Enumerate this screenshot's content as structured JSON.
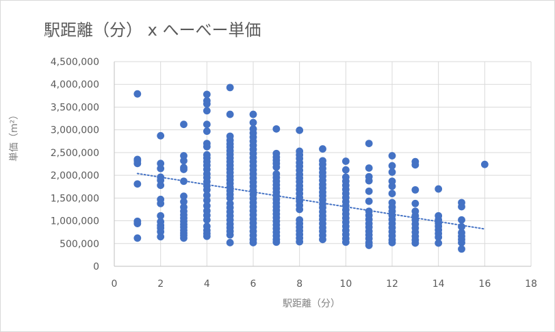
{
  "chart_data": {
    "type": "scatter",
    "title": "駅距離（分） x へーべー単価",
    "xlabel": "駅距離（分）",
    "ylabel": "単価（m²）",
    "xlim": [
      0,
      18
    ],
    "ylim": [
      0,
      4500000
    ],
    "xticks": [
      0,
      2,
      4,
      6,
      8,
      10,
      12,
      14,
      16,
      18
    ],
    "yticks": [
      0,
      500000,
      1000000,
      1500000,
      2000000,
      2500000,
      3000000,
      3500000,
      4000000,
      4500000
    ],
    "xtick_labels": [
      "0",
      "2",
      "4",
      "6",
      "8",
      "10",
      "12",
      "14",
      "16",
      "18"
    ],
    "ytick_labels": [
      "0",
      "500,000",
      "1,000,000",
      "1,500,000",
      "2,000,000",
      "2,500,000",
      "3,000,000",
      "3,500,000",
      "4,000,000",
      "4,500,000"
    ],
    "grid": true,
    "legend": "none",
    "point_color": "#4472C4",
    "trendline": {
      "type": "linear",
      "style": "dotted",
      "color": "#4472C4",
      "start": {
        "x": 1,
        "y": 2040000
      },
      "end": {
        "x": 16,
        "y": 820000
      }
    },
    "points": [
      {
        "x": 1,
        "y": 3790000
      },
      {
        "x": 1,
        "y": 2350000
      },
      {
        "x": 1,
        "y": 2320000
      },
      {
        "x": 1,
        "y": 2260000
      },
      {
        "x": 1,
        "y": 1810000
      },
      {
        "x": 1,
        "y": 990000
      },
      {
        "x": 1,
        "y": 940000
      },
      {
        "x": 1,
        "y": 620000
      },
      {
        "x": 2,
        "y": 2870000
      },
      {
        "x": 2,
        "y": 2260000
      },
      {
        "x": 2,
        "y": 2150000
      },
      {
        "x": 2,
        "y": 1960000
      },
      {
        "x": 2,
        "y": 1890000
      },
      {
        "x": 2,
        "y": 1780000
      },
      {
        "x": 2,
        "y": 1470000
      },
      {
        "x": 2,
        "y": 1380000
      },
      {
        "x": 2,
        "y": 1110000
      },
      {
        "x": 2,
        "y": 980000
      },
      {
        "x": 2,
        "y": 900000
      },
      {
        "x": 2,
        "y": 840000
      },
      {
        "x": 2,
        "y": 760000
      },
      {
        "x": 2,
        "y": 650000
      },
      {
        "x": 3,
        "y": 3120000
      },
      {
        "x": 3,
        "y": 2430000
      },
      {
        "x": 3,
        "y": 2320000
      },
      {
        "x": 3,
        "y": 2170000
      },
      {
        "x": 3,
        "y": 2130000
      },
      {
        "x": 3,
        "y": 1870000
      },
      {
        "x": 3,
        "y": 1540000
      },
      {
        "x": 3,
        "y": 1420000
      },
      {
        "x": 3,
        "y": 1300000
      },
      {
        "x": 3,
        "y": 1210000
      },
      {
        "x": 3,
        "y": 1130000
      },
      {
        "x": 3,
        "y": 1060000
      },
      {
        "x": 3,
        "y": 990000
      },
      {
        "x": 3,
        "y": 920000
      },
      {
        "x": 3,
        "y": 860000
      },
      {
        "x": 3,
        "y": 790000
      },
      {
        "x": 3,
        "y": 730000
      },
      {
        "x": 3,
        "y": 680000
      },
      {
        "x": 3,
        "y": 620000
      },
      {
        "x": 4,
        "y": 3780000
      },
      {
        "x": 4,
        "y": 3640000
      },
      {
        "x": 4,
        "y": 3570000
      },
      {
        "x": 4,
        "y": 3420000
      },
      {
        "x": 4,
        "y": 3120000
      },
      {
        "x": 4,
        "y": 2970000
      },
      {
        "x": 4,
        "y": 2700000
      },
      {
        "x": 4,
        "y": 2630000
      },
      {
        "x": 4,
        "y": 2450000
      },
      {
        "x": 4,
        "y": 2380000
      },
      {
        "x": 4,
        "y": 2300000
      },
      {
        "x": 4,
        "y": 2220000
      },
      {
        "x": 4,
        "y": 2130000
      },
      {
        "x": 4,
        "y": 2030000
      },
      {
        "x": 4,
        "y": 1950000
      },
      {
        "x": 4,
        "y": 1860000
      },
      {
        "x": 4,
        "y": 1770000
      },
      {
        "x": 4,
        "y": 1680000
      },
      {
        "x": 4,
        "y": 1560000
      },
      {
        "x": 4,
        "y": 1450000
      },
      {
        "x": 4,
        "y": 1330000
      },
      {
        "x": 4,
        "y": 1220000
      },
      {
        "x": 4,
        "y": 1120000
      },
      {
        "x": 4,
        "y": 1020000
      },
      {
        "x": 4,
        "y": 880000
      },
      {
        "x": 4,
        "y": 790000
      },
      {
        "x": 4,
        "y": 720000
      },
      {
        "x": 4,
        "y": 660000
      },
      {
        "x": 5,
        "y": 3930000
      },
      {
        "x": 5,
        "y": 3340000
      },
      {
        "x": 5,
        "y": 2860000
      },
      {
        "x": 5,
        "y": 2770000
      },
      {
        "x": 5,
        "y": 2690000
      },
      {
        "x": 5,
        "y": 2620000
      },
      {
        "x": 5,
        "y": 2540000
      },
      {
        "x": 5,
        "y": 2460000
      },
      {
        "x": 5,
        "y": 2380000
      },
      {
        "x": 5,
        "y": 2300000
      },
      {
        "x": 5,
        "y": 2220000
      },
      {
        "x": 5,
        "y": 2140000
      },
      {
        "x": 5,
        "y": 2060000
      },
      {
        "x": 5,
        "y": 1980000
      },
      {
        "x": 5,
        "y": 1900000
      },
      {
        "x": 5,
        "y": 1820000
      },
      {
        "x": 5,
        "y": 1740000
      },
      {
        "x": 5,
        "y": 1660000
      },
      {
        "x": 5,
        "y": 1580000
      },
      {
        "x": 5,
        "y": 1500000
      },
      {
        "x": 5,
        "y": 1380000
      },
      {
        "x": 5,
        "y": 1290000
      },
      {
        "x": 5,
        "y": 1200000
      },
      {
        "x": 5,
        "y": 1110000
      },
      {
        "x": 5,
        "y": 1020000
      },
      {
        "x": 5,
        "y": 930000
      },
      {
        "x": 5,
        "y": 850000
      },
      {
        "x": 5,
        "y": 770000
      },
      {
        "x": 5,
        "y": 690000
      },
      {
        "x": 5,
        "y": 520000
      },
      {
        "x": 6,
        "y": 3340000
      },
      {
        "x": 6,
        "y": 3160000
      },
      {
        "x": 6,
        "y": 3020000
      },
      {
        "x": 6,
        "y": 2930000
      },
      {
        "x": 6,
        "y": 2840000
      },
      {
        "x": 6,
        "y": 2750000
      },
      {
        "x": 6,
        "y": 2660000
      },
      {
        "x": 6,
        "y": 2570000
      },
      {
        "x": 6,
        "y": 2480000
      },
      {
        "x": 6,
        "y": 2390000
      },
      {
        "x": 6,
        "y": 2300000
      },
      {
        "x": 6,
        "y": 2210000
      },
      {
        "x": 6,
        "y": 2120000
      },
      {
        "x": 6,
        "y": 2030000
      },
      {
        "x": 6,
        "y": 1940000
      },
      {
        "x": 6,
        "y": 1850000
      },
      {
        "x": 6,
        "y": 1760000
      },
      {
        "x": 6,
        "y": 1670000
      },
      {
        "x": 6,
        "y": 1580000
      },
      {
        "x": 6,
        "y": 1490000
      },
      {
        "x": 6,
        "y": 1400000
      },
      {
        "x": 6,
        "y": 1310000
      },
      {
        "x": 6,
        "y": 1220000
      },
      {
        "x": 6,
        "y": 1130000
      },
      {
        "x": 6,
        "y": 1040000
      },
      {
        "x": 6,
        "y": 950000
      },
      {
        "x": 6,
        "y": 860000
      },
      {
        "x": 6,
        "y": 770000
      },
      {
        "x": 6,
        "y": 680000
      },
      {
        "x": 6,
        "y": 590000
      },
      {
        "x": 6,
        "y": 520000
      },
      {
        "x": 7,
        "y": 3020000
      },
      {
        "x": 7,
        "y": 2480000
      },
      {
        "x": 7,
        "y": 2400000
      },
      {
        "x": 7,
        "y": 2330000
      },
      {
        "x": 7,
        "y": 2260000
      },
      {
        "x": 7,
        "y": 2180000
      },
      {
        "x": 7,
        "y": 2030000
      },
      {
        "x": 7,
        "y": 1950000
      },
      {
        "x": 7,
        "y": 1870000
      },
      {
        "x": 7,
        "y": 1790000
      },
      {
        "x": 7,
        "y": 1710000
      },
      {
        "x": 7,
        "y": 1630000
      },
      {
        "x": 7,
        "y": 1550000
      },
      {
        "x": 7,
        "y": 1470000
      },
      {
        "x": 7,
        "y": 1390000
      },
      {
        "x": 7,
        "y": 1310000
      },
      {
        "x": 7,
        "y": 1230000
      },
      {
        "x": 7,
        "y": 1150000
      },
      {
        "x": 7,
        "y": 1070000
      },
      {
        "x": 7,
        "y": 990000
      },
      {
        "x": 7,
        "y": 910000
      },
      {
        "x": 7,
        "y": 830000
      },
      {
        "x": 7,
        "y": 750000
      },
      {
        "x": 7,
        "y": 670000
      },
      {
        "x": 7,
        "y": 590000
      },
      {
        "x": 7,
        "y": 530000
      },
      {
        "x": 8,
        "y": 2990000
      },
      {
        "x": 8,
        "y": 2530000
      },
      {
        "x": 8,
        "y": 2450000
      },
      {
        "x": 8,
        "y": 2370000
      },
      {
        "x": 8,
        "y": 2280000
      },
      {
        "x": 8,
        "y": 2200000
      },
      {
        "x": 8,
        "y": 2110000
      },
      {
        "x": 8,
        "y": 2020000
      },
      {
        "x": 8,
        "y": 1940000
      },
      {
        "x": 8,
        "y": 1860000
      },
      {
        "x": 8,
        "y": 1770000
      },
      {
        "x": 8,
        "y": 1690000
      },
      {
        "x": 8,
        "y": 1600000
      },
      {
        "x": 8,
        "y": 1510000
      },
      {
        "x": 8,
        "y": 1430000
      },
      {
        "x": 8,
        "y": 1340000
      },
      {
        "x": 8,
        "y": 1250000
      },
      {
        "x": 8,
        "y": 1020000
      },
      {
        "x": 8,
        "y": 940000
      },
      {
        "x": 8,
        "y": 860000
      },
      {
        "x": 8,
        "y": 780000
      },
      {
        "x": 8,
        "y": 700000
      },
      {
        "x": 8,
        "y": 620000
      },
      {
        "x": 8,
        "y": 540000
      },
      {
        "x": 9,
        "y": 2580000
      },
      {
        "x": 9,
        "y": 2320000
      },
      {
        "x": 9,
        "y": 2240000
      },
      {
        "x": 9,
        "y": 2150000
      },
      {
        "x": 9,
        "y": 2060000
      },
      {
        "x": 9,
        "y": 1980000
      },
      {
        "x": 9,
        "y": 1890000
      },
      {
        "x": 9,
        "y": 1800000
      },
      {
        "x": 9,
        "y": 1720000
      },
      {
        "x": 9,
        "y": 1630000
      },
      {
        "x": 9,
        "y": 1550000
      },
      {
        "x": 9,
        "y": 1460000
      },
      {
        "x": 9,
        "y": 1370000
      },
      {
        "x": 9,
        "y": 1290000
      },
      {
        "x": 9,
        "y": 1200000
      },
      {
        "x": 9,
        "y": 1110000
      },
      {
        "x": 9,
        "y": 1030000
      },
      {
        "x": 9,
        "y": 940000
      },
      {
        "x": 9,
        "y": 850000
      },
      {
        "x": 9,
        "y": 770000
      },
      {
        "x": 9,
        "y": 680000
      },
      {
        "x": 9,
        "y": 590000
      },
      {
        "x": 10,
        "y": 2310000
      },
      {
        "x": 10,
        "y": 2120000
      },
      {
        "x": 10,
        "y": 1960000
      },
      {
        "x": 10,
        "y": 1870000
      },
      {
        "x": 10,
        "y": 1780000
      },
      {
        "x": 10,
        "y": 1690000
      },
      {
        "x": 10,
        "y": 1600000
      },
      {
        "x": 10,
        "y": 1510000
      },
      {
        "x": 10,
        "y": 1420000
      },
      {
        "x": 10,
        "y": 1330000
      },
      {
        "x": 10,
        "y": 1240000
      },
      {
        "x": 10,
        "y": 1150000
      },
      {
        "x": 10,
        "y": 1060000
      },
      {
        "x": 10,
        "y": 970000
      },
      {
        "x": 10,
        "y": 880000
      },
      {
        "x": 10,
        "y": 790000
      },
      {
        "x": 10,
        "y": 700000
      },
      {
        "x": 10,
        "y": 610000
      },
      {
        "x": 10,
        "y": 530000
      },
      {
        "x": 11,
        "y": 2700000
      },
      {
        "x": 11,
        "y": 2160000
      },
      {
        "x": 11,
        "y": 1970000
      },
      {
        "x": 11,
        "y": 1880000
      },
      {
        "x": 11,
        "y": 1650000
      },
      {
        "x": 11,
        "y": 1430000
      },
      {
        "x": 11,
        "y": 1210000
      },
      {
        "x": 11,
        "y": 1120000
      },
      {
        "x": 11,
        "y": 1030000
      },
      {
        "x": 11,
        "y": 940000
      },
      {
        "x": 11,
        "y": 860000
      },
      {
        "x": 11,
        "y": 770000
      },
      {
        "x": 11,
        "y": 690000
      },
      {
        "x": 11,
        "y": 610000
      },
      {
        "x": 11,
        "y": 520000
      },
      {
        "x": 11,
        "y": 460000
      },
      {
        "x": 12,
        "y": 2430000
      },
      {
        "x": 12,
        "y": 2210000
      },
      {
        "x": 12,
        "y": 2070000
      },
      {
        "x": 12,
        "y": 1870000
      },
      {
        "x": 12,
        "y": 1760000
      },
      {
        "x": 12,
        "y": 1600000
      },
      {
        "x": 12,
        "y": 1400000
      },
      {
        "x": 12,
        "y": 1300000
      },
      {
        "x": 12,
        "y": 1210000
      },
      {
        "x": 12,
        "y": 1120000
      },
      {
        "x": 12,
        "y": 1030000
      },
      {
        "x": 12,
        "y": 940000
      },
      {
        "x": 12,
        "y": 850000
      },
      {
        "x": 12,
        "y": 760000
      },
      {
        "x": 12,
        "y": 670000
      },
      {
        "x": 12,
        "y": 580000
      },
      {
        "x": 12,
        "y": 520000
      },
      {
        "x": 13,
        "y": 2300000
      },
      {
        "x": 13,
        "y": 2230000
      },
      {
        "x": 13,
        "y": 1680000
      },
      {
        "x": 13,
        "y": 1380000
      },
      {
        "x": 13,
        "y": 1210000
      },
      {
        "x": 13,
        "y": 1110000
      },
      {
        "x": 13,
        "y": 1020000
      },
      {
        "x": 13,
        "y": 930000
      },
      {
        "x": 13,
        "y": 840000
      },
      {
        "x": 13,
        "y": 750000
      },
      {
        "x": 13,
        "y": 660000
      },
      {
        "x": 13,
        "y": 580000
      },
      {
        "x": 13,
        "y": 510000
      },
      {
        "x": 14,
        "y": 1700000
      },
      {
        "x": 14,
        "y": 1110000
      },
      {
        "x": 14,
        "y": 1020000
      },
      {
        "x": 14,
        "y": 950000
      },
      {
        "x": 14,
        "y": 880000
      },
      {
        "x": 14,
        "y": 800000
      },
      {
        "x": 14,
        "y": 720000
      },
      {
        "x": 14,
        "y": 640000
      },
      {
        "x": 14,
        "y": 510000
      },
      {
        "x": 15,
        "y": 1400000
      },
      {
        "x": 15,
        "y": 1310000
      },
      {
        "x": 15,
        "y": 1020000
      },
      {
        "x": 15,
        "y": 870000
      },
      {
        "x": 15,
        "y": 740000
      },
      {
        "x": 15,
        "y": 660000
      },
      {
        "x": 15,
        "y": 590000
      },
      {
        "x": 15,
        "y": 520000
      },
      {
        "x": 15,
        "y": 380000
      },
      {
        "x": 16,
        "y": 2240000
      }
    ]
  }
}
